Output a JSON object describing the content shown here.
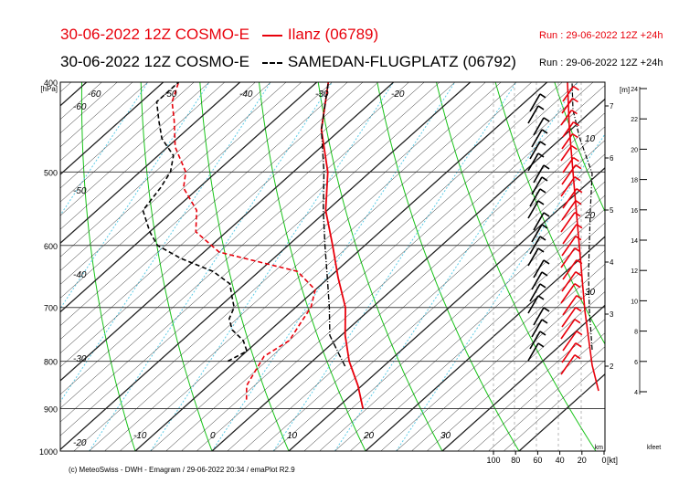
{
  "header": {
    "title_a_prefix": "30-06-2022 12Z COSMO-E",
    "title_a_station": "Ilanz (06789)",
    "title_b_prefix": "30-06-2022 12Z COSMO-E",
    "title_b_station": "SAMEDAN-FLUGPLATZ (06792)",
    "run_a": "Run : 29-06-2022 12Z +24h",
    "run_b": "Run : 29-06-2022 12Z +24h"
  },
  "footer": "(c) MeteoSwiss - DWH - Emagram / 29-06-2022  20:34 / emaPlot R2.9",
  "colors": {
    "ilanz": "#e8000b",
    "samedan": "#000000",
    "isotherm": "#222222",
    "dry_adiabat": "#18c418",
    "moist": "#5ecde8"
  },
  "chart_data": {
    "type": "line",
    "title": "Emagram",
    "pressure_unit": "[hPa]",
    "height_unit": "[m]",
    "pressure_ticks": [
      400,
      500,
      600,
      700,
      800,
      900,
      1000
    ],
    "pressure_labels": [
      "400",
      "500",
      "600",
      "700",
      "800",
      "900",
      "1000"
    ],
    "plim": [
      400,
      1000
    ],
    "temp_ticks_top": [
      "-60",
      "-50",
      "-40",
      "-30",
      "-20"
    ],
    "temp_ticks_bottom": [
      "-10",
      "0",
      "10",
      "20",
      "30"
    ],
    "temp_left_ticks": [
      "-60",
      "-50",
      "-40",
      "-30",
      "-20"
    ],
    "height_ticks": [
      "7",
      "6",
      "5",
      "4",
      "3",
      "2"
    ],
    "kfeet_ticks": [
      "24",
      "22",
      "20",
      "18",
      "16",
      "14",
      "12",
      "10",
      "8",
      "6",
      "4"
    ],
    "kfeet_label": "kfeet",
    "km_label": "km",
    "wind_ticks": [
      "100",
      "80",
      "60",
      "40",
      "20",
      "0"
    ],
    "wind_unit": "[kt]",
    "wind_profile_labels": [
      "10",
      "20",
      "30"
    ],
    "series": [
      {
        "name": "Ilanz (06789)",
        "kind": "temperature",
        "p": [
          900,
          850,
          800,
          750,
          700,
          650,
          600,
          550,
          500,
          450,
          400
        ],
        "t": [
          13.5,
          9.5,
          4.8,
          0.5,
          -3.5,
          -8.8,
          -14.2,
          -20.2,
          -25.5,
          -32.5,
          -38.5
        ]
      },
      {
        "name": "Ilanz (06789)",
        "kind": "dewpoint",
        "p": [
          880,
          850,
          820,
          790,
          760,
          730,
          700,
          670,
          640,
          610,
          580,
          550,
          520,
          500,
          470,
          440,
          420,
          400
        ],
        "t": [
          -3,
          -5,
          -6,
          -7,
          -6,
          -7,
          -8,
          -10,
          -15,
          -28,
          -34,
          -37,
          -42,
          -44,
          -49,
          -53,
          -56,
          -58
        ]
      },
      {
        "name": "SAMEDAN-FLUGPLATZ (06792)",
        "kind": "temperature",
        "p": [
          810,
          780,
          750,
          700,
          650,
          600,
          550,
          500,
          450,
          400
        ],
        "t": [
          5,
          1.8,
          -1.5,
          -5.6,
          -10.2,
          -15.2,
          -20.5,
          -26,
          -32.5,
          -38.5
        ]
      },
      {
        "name": "SAMEDAN-FLUGPLATZ (06792)",
        "kind": "dewpoint",
        "p": [
          800,
          780,
          760,
          740,
          720,
          700,
          680,
          660,
          640,
          620,
          600,
          580,
          550,
          520,
          500,
          480,
          460,
          440,
          420,
          400
        ],
        "t": [
          -11,
          -10,
          -12,
          -15,
          -17,
          -18,
          -20,
          -22,
          -26,
          -32,
          -37,
          -40,
          -44,
          -45,
          -46,
          -48,
          -52,
          -55,
          -58,
          -58
        ]
      }
    ]
  }
}
